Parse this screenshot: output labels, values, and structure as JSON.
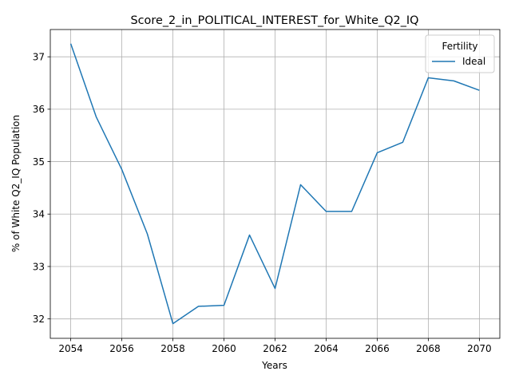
{
  "chart_data": {
    "type": "line",
    "title": "Score_2_in_POLITICAL_INTEREST_for_White_Q2_IQ",
    "xlabel": "Years",
    "ylabel": "% of White Q2_IQ Population",
    "xlim": [
      2053.2,
      2070.8
    ],
    "ylim": [
      31.63,
      37.52
    ],
    "x_ticks": [
      2054,
      2056,
      2058,
      2060,
      2062,
      2064,
      2066,
      2068,
      2070
    ],
    "y_ticks": [
      32,
      33,
      34,
      35,
      36,
      37
    ],
    "grid": true,
    "legend": {
      "title": "Fertility",
      "position": "top-right"
    },
    "x": [
      2054,
      2055,
      2056,
      2057,
      2058,
      2059,
      2060,
      2061,
      2062,
      2063,
      2064,
      2065,
      2066,
      2067,
      2068,
      2069,
      2070
    ],
    "series": [
      {
        "name": "Ideal",
        "color": "#1f77b4",
        "values": [
          37.25,
          35.85,
          34.85,
          33.62,
          31.91,
          32.24,
          32.26,
          33.6,
          32.58,
          34.56,
          34.05,
          34.05,
          35.17,
          35.37,
          36.6,
          36.54,
          36.36
        ]
      }
    ]
  }
}
